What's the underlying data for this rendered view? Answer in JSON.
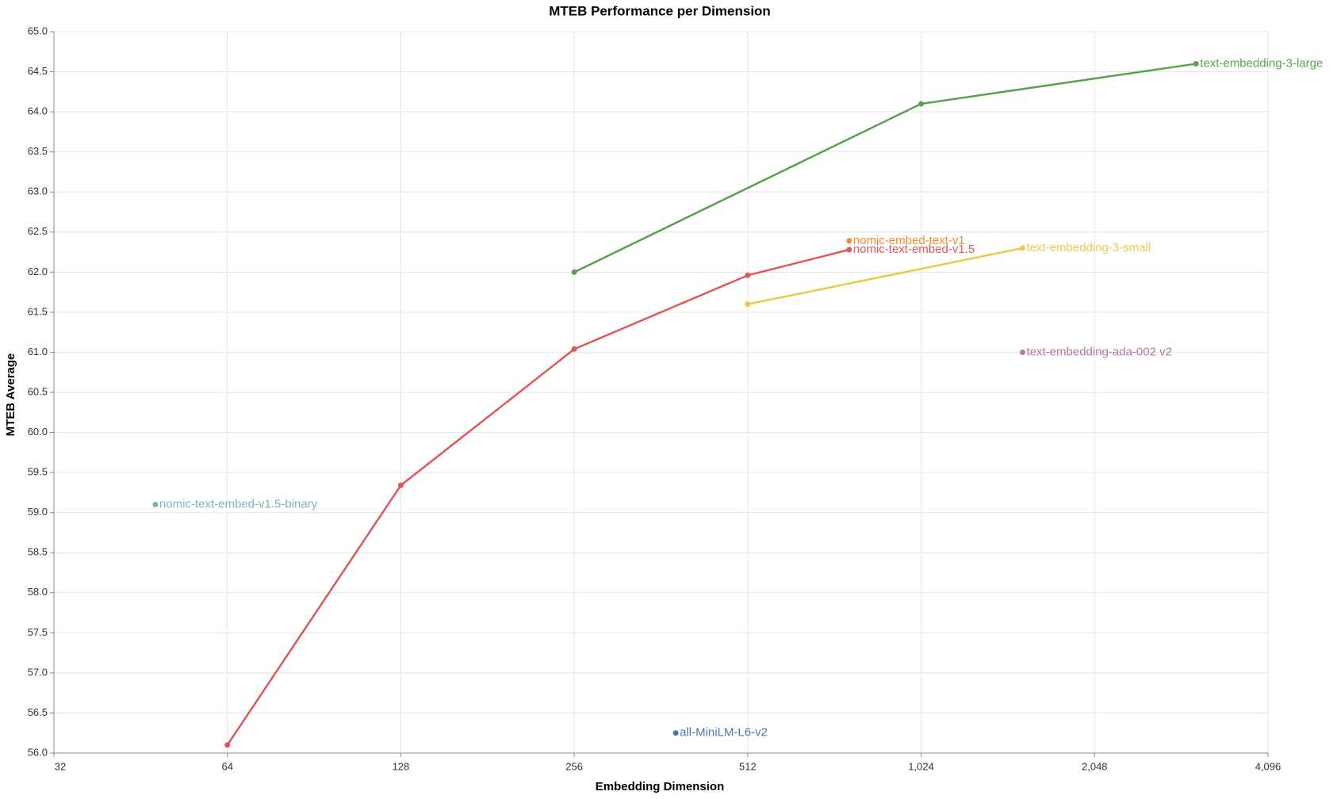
{
  "chart_data": {
    "type": "line",
    "title": "MTEB Performance per Dimension",
    "x_label": "Embedding Dimension",
    "y_label": "MTEB Average",
    "xscale": "log",
    "xlim": [
      32,
      4096
    ],
    "xticks": [
      32,
      64,
      128,
      256,
      512,
      {
        "value": 1024,
        "label": "1,024"
      },
      {
        "value": 2048,
        "label": "2,048"
      },
      {
        "value": 4096,
        "label": "4,096"
      }
    ],
    "ylim": [
      56,
      65
    ],
    "yticks": [
      {
        "value": 56,
        "label": "56.0"
      },
      56.5,
      {
        "value": 57,
        "label": "57.0"
      },
      57.5,
      {
        "value": 58,
        "label": "58.0"
      },
      58.5,
      {
        "value": 59,
        "label": "59.0"
      },
      59.5,
      {
        "value": 60,
        "label": "60.0"
      },
      60.5,
      {
        "value": 61,
        "label": "61.0"
      },
      61.5,
      {
        "value": 62,
        "label": "62.0"
      },
      62.5,
      {
        "value": 63,
        "label": "63.0"
      },
      63.5,
      {
        "value": 64,
        "label": "64.0"
      },
      64.5,
      {
        "value": 65,
        "label": "65.0"
      }
    ],
    "grid": true,
    "series": [
      {
        "name": "text-embedding-3-large",
        "color": "#59a14f",
        "x": [
          256,
          1024,
          3072
        ],
        "values": [
          62.0,
          64.1,
          64.6
        ]
      },
      {
        "name": "nomic-text-embed-v1.5",
        "color": "#e15759",
        "x": [
          64,
          128,
          256,
          512,
          768
        ],
        "values": [
          56.1,
          59.34,
          61.04,
          61.96,
          62.28
        ]
      },
      {
        "name": "nomic-embed-text-v1",
        "color": "#f28e2b",
        "x": [
          768
        ],
        "values": [
          62.39
        ]
      },
      {
        "name": "text-embedding-3-small",
        "color": "#edc948",
        "x": [
          512,
          1536
        ],
        "values": [
          61.6,
          62.3
        ]
      },
      {
        "name": "text-embedding-ada-002 v2",
        "color": "#b07aa1",
        "x": [
          1536
        ],
        "values": [
          61.0
        ]
      },
      {
        "name": "nomic-text-embed-v1.5-binary",
        "color": "#76b7b2",
        "x": [
          48
        ],
        "values": [
          59.1
        ]
      },
      {
        "name": "all-MiniLM-L6-v2",
        "color": "#4e79a7",
        "x": [
          384
        ],
        "values": [
          56.25
        ]
      }
    ]
  }
}
